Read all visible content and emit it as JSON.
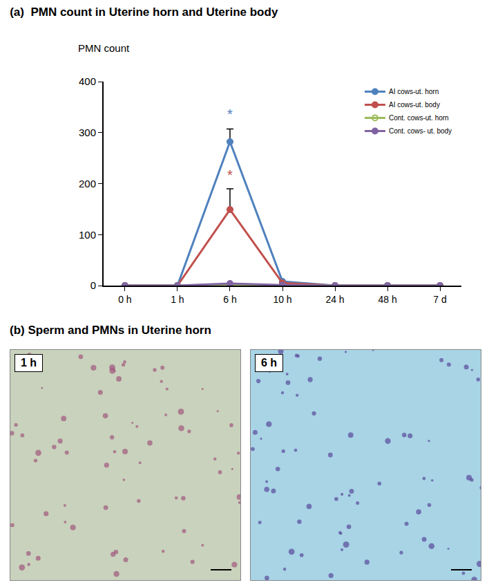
{
  "chart_data": {
    "type": "line",
    "title": "(a)  PMN count in Uterine horn and Uterine body",
    "y_label": "PMN count",
    "categories": [
      "0 h",
      "1 h",
      "6 h",
      "10 h",
      "24 h",
      "48 h",
      "7 d"
    ],
    "series": [
      {
        "name": "AI cows-ut. horn",
        "color": "#4f81bd",
        "marker": "circle",
        "values": [
          0,
          0,
          282,
          8,
          0,
          0,
          0
        ],
        "errors": [
          null,
          null,
          25,
          null,
          null,
          null,
          null
        ]
      },
      {
        "name": "AI cows-ut. body",
        "color": "#c0504d",
        "marker": "circle",
        "values": [
          0,
          0,
          149,
          5,
          0,
          0,
          0
        ],
        "errors": [
          null,
          null,
          41,
          null,
          null,
          null,
          null
        ]
      },
      {
        "name": "Cont. cows-ut. horn",
        "color": "#9bbb59",
        "marker": "circle-open",
        "values": [
          0,
          0,
          2,
          0,
          0,
          0,
          0
        ],
        "errors": [
          null,
          null,
          null,
          null,
          null,
          null,
          null
        ]
      },
      {
        "name": "Cont. cows- ut. body",
        "color": "#8064a2",
        "marker": "circle",
        "values": [
          0,
          0,
          4,
          1,
          0,
          0,
          0
        ],
        "errors": [
          null,
          null,
          null,
          null,
          null,
          null,
          null
        ]
      }
    ],
    "annotations": [
      {
        "category": "6 h",
        "y": 318,
        "text": "*",
        "color": "#4f81bd"
      },
      {
        "category": "6 h",
        "y": 200,
        "text": "*",
        "color": "#c0504d"
      }
    ],
    "ylim": [
      0,
      400
    ],
    "yticks": [
      0,
      100,
      200,
      300,
      400
    ],
    "grid": false,
    "legend": "upper right"
  },
  "panel_b": {
    "title": "(b)  Sperm and PMNs in Uterine horn",
    "images": [
      {
        "label": "1 h"
      },
      {
        "label": "6 h"
      }
    ]
  }
}
